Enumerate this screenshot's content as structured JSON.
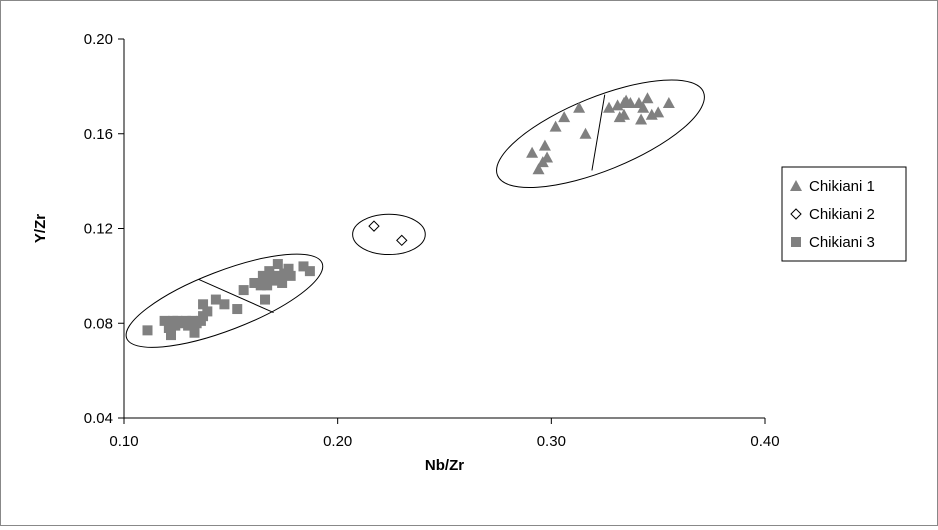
{
  "chart_data": {
    "type": "scatter",
    "xlabel": "Nb/Zr",
    "ylabel": "Y/Zr",
    "xlim": [
      0.1,
      0.4
    ],
    "ylim": [
      0.04,
      0.2
    ],
    "x_ticks": [
      "0.10",
      "0.20",
      "0.30",
      "0.40"
    ],
    "y_ticks": [
      "0.04",
      "0.08",
      "0.12",
      "0.16",
      "0.20"
    ],
    "grid": false,
    "legend_position": "right",
    "series": [
      {
        "name": "Chikiani 1",
        "marker": "triangle",
        "color": "#808080",
        "points": [
          [
            0.291,
            0.152
          ],
          [
            0.294,
            0.145
          ],
          [
            0.296,
            0.148
          ],
          [
            0.297,
            0.155
          ],
          [
            0.298,
            0.15
          ],
          [
            0.302,
            0.163
          ],
          [
            0.306,
            0.167
          ],
          [
            0.313,
            0.171
          ],
          [
            0.316,
            0.16
          ],
          [
            0.327,
            0.171
          ],
          [
            0.331,
            0.172
          ],
          [
            0.332,
            0.167
          ],
          [
            0.334,
            0.173
          ],
          [
            0.334,
            0.168
          ],
          [
            0.335,
            0.174
          ],
          [
            0.337,
            0.173
          ],
          [
            0.341,
            0.173
          ],
          [
            0.342,
            0.166
          ],
          [
            0.343,
            0.171
          ],
          [
            0.345,
            0.175
          ],
          [
            0.347,
            0.168
          ],
          [
            0.35,
            0.169
          ],
          [
            0.355,
            0.173
          ]
        ]
      },
      {
        "name": "Chikiani 2",
        "marker": "diamond-open",
        "color": "#000000",
        "points": [
          [
            0.217,
            0.121
          ],
          [
            0.23,
            0.115
          ]
        ]
      },
      {
        "name": "Chikiani 3",
        "marker": "square",
        "color": "#808080",
        "points": [
          [
            0.111,
            0.077
          ],
          [
            0.119,
            0.081
          ],
          [
            0.121,
            0.078
          ],
          [
            0.122,
            0.075
          ],
          [
            0.123,
            0.081
          ],
          [
            0.124,
            0.079
          ],
          [
            0.125,
            0.081
          ],
          [
            0.127,
            0.08
          ],
          [
            0.129,
            0.081
          ],
          [
            0.13,
            0.079
          ],
          [
            0.132,
            0.081
          ],
          [
            0.133,
            0.076
          ],
          [
            0.134,
            0.08
          ],
          [
            0.136,
            0.081
          ],
          [
            0.137,
            0.083
          ],
          [
            0.137,
            0.088
          ],
          [
            0.139,
            0.085
          ],
          [
            0.143,
            0.09
          ],
          [
            0.147,
            0.088
          ],
          [
            0.153,
            0.086
          ],
          [
            0.156,
            0.094
          ],
          [
            0.161,
            0.097
          ],
          [
            0.164,
            0.096
          ],
          [
            0.165,
            0.1
          ],
          [
            0.166,
            0.09
          ],
          [
            0.167,
            0.096
          ],
          [
            0.168,
            0.102
          ],
          [
            0.169,
            0.099
          ],
          [
            0.17,
            0.098
          ],
          [
            0.171,
            0.1
          ],
          [
            0.172,
            0.105
          ],
          [
            0.174,
            0.097
          ],
          [
            0.175,
            0.101
          ],
          [
            0.177,
            0.103
          ],
          [
            0.178,
            0.1
          ],
          [
            0.184,
            0.104
          ],
          [
            0.187,
            0.102
          ]
        ]
      }
    ],
    "annotations": {
      "ellipses": [
        {
          "cx": 0.147,
          "cy": 0.0895,
          "rx_data": 0.049,
          "ry_data": 0.0125,
          "angle_deg": -21
        },
        {
          "cx": 0.224,
          "cy": 0.1175,
          "rx_data": 0.017,
          "ry_data": 0.0085,
          "angle_deg": 0
        },
        {
          "cx": 0.323,
          "cy": 0.16,
          "rx_data": 0.052,
          "ry_data": 0.0155,
          "angle_deg": -22
        }
      ],
      "lines": [
        {
          "x1": 0.135,
          "y1": 0.0985,
          "x2": 0.17,
          "y2": 0.0845
        },
        {
          "x1": 0.325,
          "y1": 0.1765,
          "x2": 0.319,
          "y2": 0.1445
        }
      ]
    }
  }
}
